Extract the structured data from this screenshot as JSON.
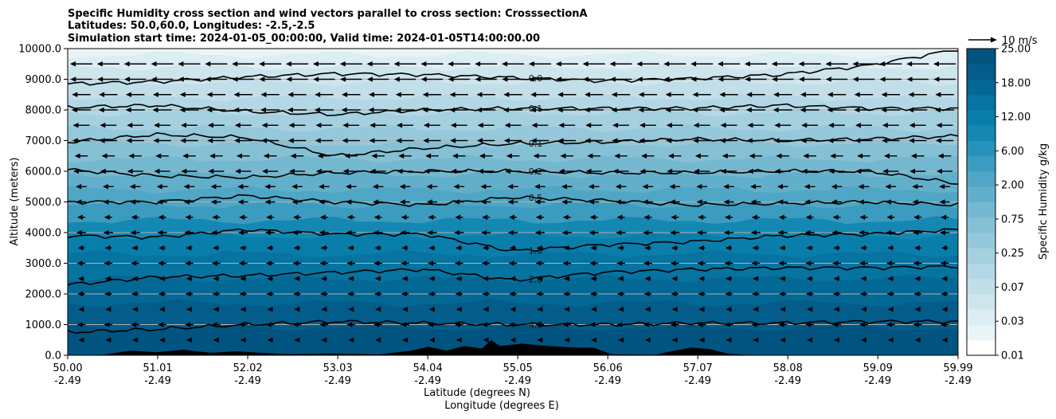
{
  "chart_data": {
    "type": "contourf",
    "title_lines": [
      "Specific Humidity cross section and wind vectors parallel to cross section: CrosssectionA",
      "Latitudes: 50.0,60.0, Longitudes: -2.5,-2.5",
      "Simulation start time: 2024-01-05_00:00:00, Valid time: 2024-01-05T14:00:00.00"
    ],
    "xlabel_lines": [
      "Latitude (degrees N)",
      "Longitude (degrees E)"
    ],
    "ylabel": "Altitude (meters)",
    "xlim": [
      50.0,
      59.99
    ],
    "ylim": [
      0,
      10000
    ],
    "x_ticks": [
      {
        "lat": "50.00",
        "lon": "-2.49"
      },
      {
        "lat": "51.01",
        "lon": "-2.49"
      },
      {
        "lat": "52.02",
        "lon": "-2.49"
      },
      {
        "lat": "53.03",
        "lon": "-2.49"
      },
      {
        "lat": "54.04",
        "lon": "-2.49"
      },
      {
        "lat": "55.05",
        "lon": "-2.49"
      },
      {
        "lat": "56.06",
        "lon": "-2.49"
      },
      {
        "lat": "57.07",
        "lon": "-2.49"
      },
      {
        "lat": "58.08",
        "lon": "-2.49"
      },
      {
        "lat": "59.09",
        "lon": "-2.49"
      },
      {
        "lat": "59.99",
        "lon": "-2.49"
      }
    ],
    "y_ticks": [
      "0.0",
      "1000.0",
      "2000.0",
      "3000.0",
      "4000.0",
      "5000.0",
      "6000.0",
      "7000.0",
      "8000.0",
      "9000.0",
      "10000.0"
    ],
    "y_tick_values": [
      0,
      1000,
      2000,
      3000,
      4000,
      5000,
      6000,
      7000,
      8000,
      9000,
      10000
    ],
    "colorbar": {
      "label": "Specific Humidity g/kg",
      "tick_labels": [
        "0.01",
        "0.03",
        "0.07",
        "0.25",
        "0.75",
        "2.00",
        "6.00",
        "12.00",
        "18.00",
        "25.00"
      ],
      "levels": 20,
      "colors": [
        "#ffffff",
        "#e9f4f7",
        "#dcedf3",
        "#cfe5ee",
        "#c1dee9",
        "#b3d7e4",
        "#a4d0df",
        "#95c8da",
        "#85c0d5",
        "#74b8d0",
        "#62afcb",
        "#4fa6c5",
        "#3b9cbf",
        "#2792b9",
        "#1488b2",
        "#0a7eab",
        "#0673a0",
        "#046895",
        "#035c8a",
        "#025480"
      ]
    },
    "contour_lines": [
      {
        "label": "0.0",
        "alts": [
          8850,
          8920,
          9080,
          9180,
          9150,
          9050,
          8950,
          9020,
          9150,
          9450,
          9980
        ]
      },
      {
        "label": "0.1",
        "alts": [
          8080,
          8150,
          7950,
          7850,
          8000,
          8050,
          8050,
          8050,
          8150,
          8050,
          8050
        ]
      },
      {
        "label": "0.1",
        "alts": [
          6950,
          7200,
          7100,
          6500,
          6750,
          6900,
          6950,
          7050,
          7000,
          7050,
          7150
        ]
      },
      {
        "label": "0.2",
        "alts": [
          6050,
          5850,
          5800,
          5950,
          6000,
          6000,
          5950,
          5950,
          6000,
          6000,
          5600
        ]
      },
      {
        "label": "0.5",
        "alts": [
          5000,
          5000,
          5200,
          5000,
          4900,
          5150,
          5050,
          4900,
          4950,
          5000,
          4900
        ]
      },
      {
        "label": "1.0",
        "alts": [
          3900,
          3850,
          4100,
          3950,
          3950,
          3400,
          3600,
          3700,
          3900,
          3950,
          4100
        ]
      },
      {
        "label": "2.0",
        "alts": [
          2300,
          2550,
          2600,
          2700,
          2800,
          2450,
          2700,
          2800,
          2850,
          2850,
          2900
        ]
      },
      {
        "label": "4.0",
        "alts": [
          750,
          850,
          1000,
          1100,
          1050,
          1000,
          1000,
          1050,
          1050,
          1100,
          1100
        ]
      }
    ],
    "wind_reference": {
      "label": "10 m/s",
      "value": 10
    },
    "wind_rows": [
      {
        "alt": 9500,
        "speed": 7.8
      },
      {
        "alt": 9000,
        "speed": 7.6
      },
      {
        "alt": 8500,
        "speed": 6.5
      },
      {
        "alt": 8000,
        "speed": 6.7
      },
      {
        "alt": 7500,
        "speed": 5.8
      },
      {
        "alt": 7000,
        "speed": 6.2
      },
      {
        "alt": 6500,
        "speed": 4.6
      },
      {
        "alt": 6000,
        "speed": 5.6
      },
      {
        "alt": 5500,
        "speed": 3.8
      },
      {
        "alt": 5000,
        "speed": 3.6
      },
      {
        "alt": 4500,
        "speed": 2.8
      },
      {
        "alt": 4000,
        "speed": 3.4
      },
      {
        "alt": 3500,
        "speed": 2.4
      },
      {
        "alt": 3000,
        "speed": 3.0
      },
      {
        "alt": 2500,
        "speed": 2.2
      },
      {
        "alt": 2000,
        "speed": 2.6
      },
      {
        "alt": 1500,
        "speed": 2.0
      },
      {
        "alt": 1000,
        "speed": 3.0
      },
      {
        "alt": 500,
        "speed": 2.0
      }
    ],
    "terrain": [
      {
        "lat": 50.0,
        "alt": 0
      },
      {
        "lat": 50.4,
        "alt": 20
      },
      {
        "lat": 50.7,
        "alt": 150
      },
      {
        "lat": 51.0,
        "alt": 100
      },
      {
        "lat": 51.3,
        "alt": 180
      },
      {
        "lat": 51.6,
        "alt": 80
      },
      {
        "lat": 51.9,
        "alt": 130
      },
      {
        "lat": 52.2,
        "alt": 70
      },
      {
        "lat": 52.5,
        "alt": 40
      },
      {
        "lat": 53.0,
        "alt": 60
      },
      {
        "lat": 53.5,
        "alt": 30
      },
      {
        "lat": 53.85,
        "alt": 150
      },
      {
        "lat": 54.05,
        "alt": 280
      },
      {
        "lat": 54.25,
        "alt": 150
      },
      {
        "lat": 54.45,
        "alt": 300
      },
      {
        "lat": 54.65,
        "alt": 220
      },
      {
        "lat": 54.75,
        "alt": 500
      },
      {
        "lat": 54.85,
        "alt": 300
      },
      {
        "lat": 55.1,
        "alt": 380
      },
      {
        "lat": 55.4,
        "alt": 300
      },
      {
        "lat": 55.7,
        "alt": 250
      },
      {
        "lat": 55.9,
        "alt": 250
      },
      {
        "lat": 56.1,
        "alt": 30
      },
      {
        "lat": 56.6,
        "alt": 20
      },
      {
        "lat": 56.75,
        "alt": 120
      },
      {
        "lat": 57.0,
        "alt": 250
      },
      {
        "lat": 57.2,
        "alt": 200
      },
      {
        "lat": 57.4,
        "alt": 60
      },
      {
        "lat": 57.7,
        "alt": 0
      },
      {
        "lat": 59.99,
        "alt": 0
      }
    ]
  }
}
